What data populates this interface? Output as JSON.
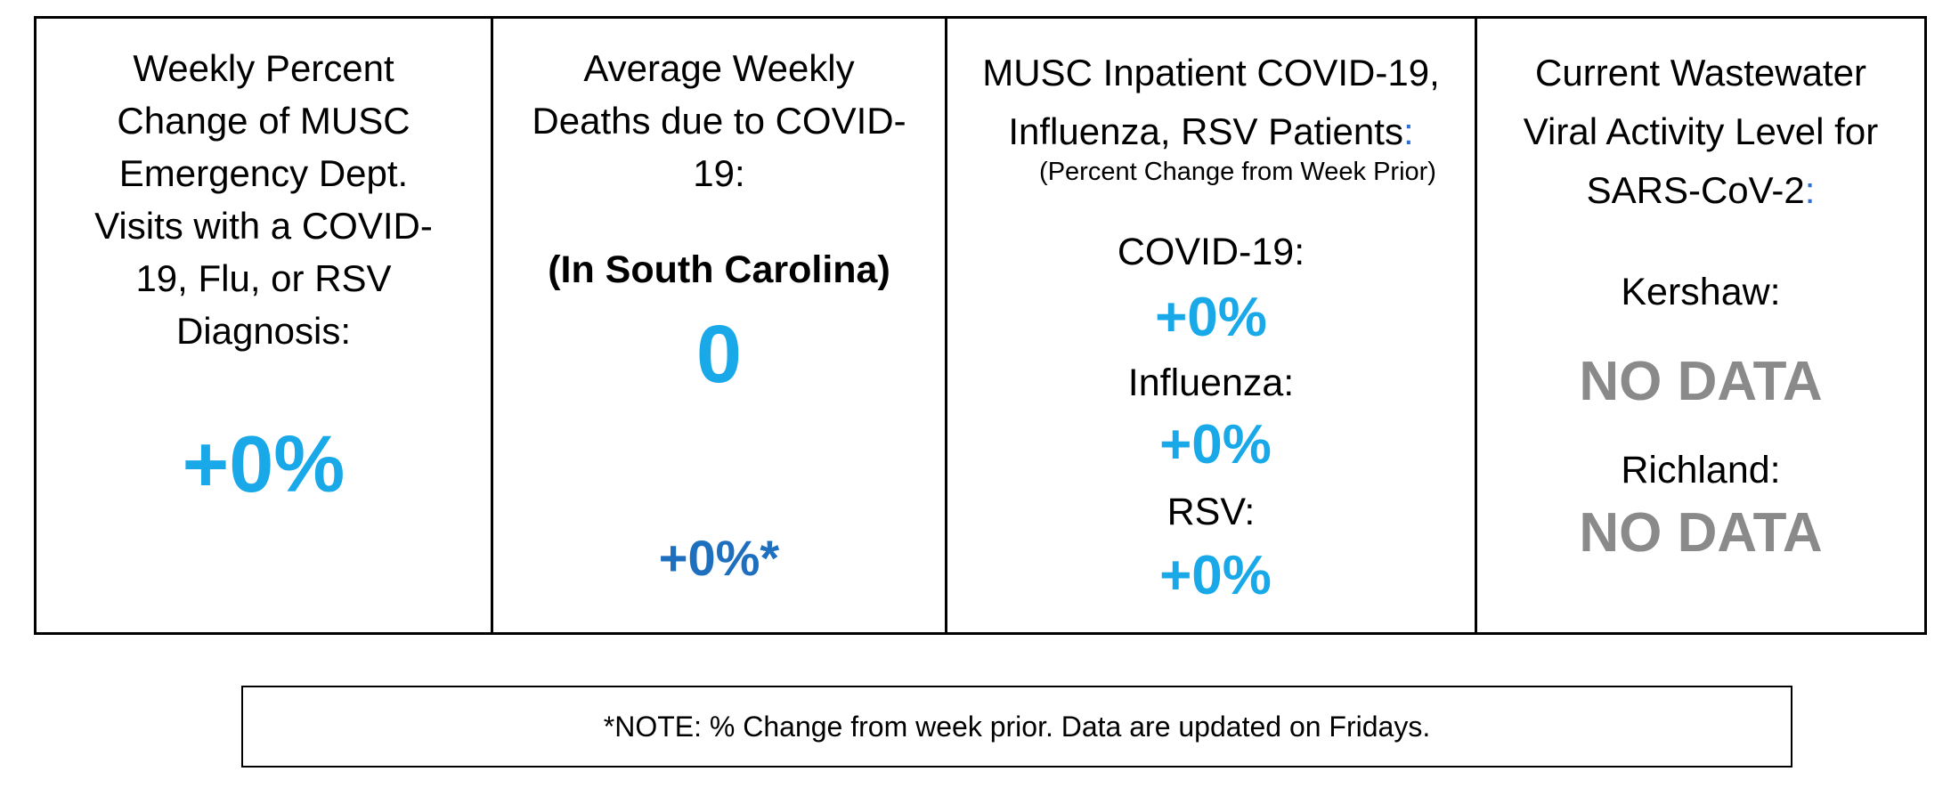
{
  "panels": {
    "ed_visits": {
      "heading": [
        "Weekly Percent",
        "Change of MUSC",
        "Emergency Dept.",
        "Visits with a COVID-",
        "19, Flu, or RSV",
        "Diagnosis:"
      ],
      "value": "+0%",
      "value_color": "#19a9e8"
    },
    "deaths": {
      "heading": [
        "Average Weekly",
        "Deaths due to COVID-",
        "19:"
      ],
      "region": "(In South Carolina)",
      "value": "0",
      "change": "+0%*",
      "value_color": "#19a9e8",
      "change_color": "#1f6fbf"
    },
    "inpatient": {
      "heading_line1": "MUSC Inpatient COVID-19,",
      "heading_line2": "Influenza, RSV Patients",
      "heading_colon": ":",
      "subheading": "(Percent Change from Week Prior)",
      "items": [
        {
          "label": "COVID-19:",
          "value": "+0%"
        },
        {
          "label": "Influenza:",
          "value": "+0%"
        },
        {
          "label": "RSV:",
          "value": "+0%"
        }
      ],
      "value_color": "#19a9e8"
    },
    "wastewater": {
      "heading_line1": "Current Wastewater",
      "heading_line2": "Viral Activity Level for",
      "heading_line3": "SARS-CoV-2",
      "heading_colon": ":",
      "locations": [
        {
          "label": "Kershaw:",
          "value": "NO DATA"
        },
        {
          "label": "Richland:",
          "value": "NO DATA"
        }
      ],
      "value_color": "#8a8a8a"
    }
  },
  "note": "*NOTE: % Change from week prior. Data are updated on Fridays."
}
